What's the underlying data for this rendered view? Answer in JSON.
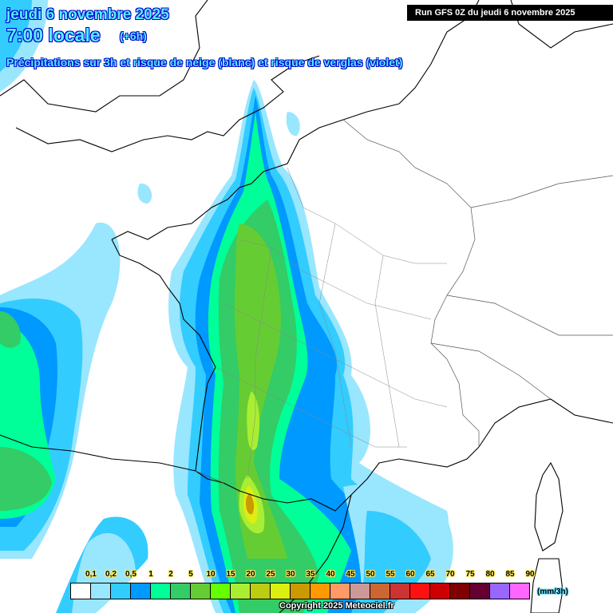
{
  "header": {
    "date": "jeudi 6 novembre 2025",
    "time": "7:00 locale",
    "offset": "(+6h)",
    "subtitle": "Précipitations sur 3h et risque de neige (blanc) et risque de verglas (violet)",
    "run": "Run GFS 0Z du jeudi 6 novembre 2025"
  },
  "legend": {
    "unit": "(mm/3h)",
    "labels": [
      "0,1",
      "0,2",
      "0,5",
      "1",
      "2",
      "5",
      "10",
      "15",
      "20",
      "25",
      "30",
      "35",
      "40",
      "45",
      "50",
      "55",
      "60",
      "65",
      "70",
      "75",
      "80",
      "85",
      "90"
    ],
    "colors": [
      "#ffffff",
      "#99e6ff",
      "#33ccff",
      "#0099ff",
      "#00ff99",
      "#33cc66",
      "#66cc33",
      "#66ff00",
      "#aaee33",
      "#bbcc11",
      "#ddee11",
      "#cc9900",
      "#ff9900",
      "#ff9966",
      "#cc9999",
      "#cc6633",
      "#cc3333",
      "#ff1111",
      "#cc0000",
      "#800000",
      "#660033",
      "#9966ff",
      "#ff66ff"
    ]
  },
  "footer": {
    "copyright": "Copyright 2025 Meteociel.fr"
  }
}
